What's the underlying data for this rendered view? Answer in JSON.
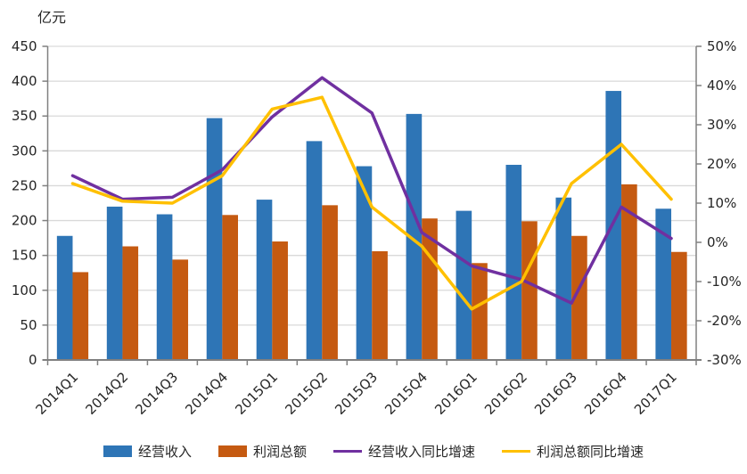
{
  "chart_data": {
    "type": "combo-bar-line",
    "title": "",
    "left_axis": {
      "title": "亿元",
      "min": 0,
      "max": 450,
      "step": 50
    },
    "right_axis": {
      "min": -30,
      "max": 50,
      "step": 10,
      "format": "percent"
    },
    "categories": [
      "2014Q1",
      "2014Q2",
      "2014Q3",
      "2014Q4",
      "2015Q1",
      "2015Q2",
      "2015Q3",
      "2015Q4",
      "2016Q1",
      "2016Q2",
      "2016Q3",
      "2016Q4",
      "2017Q1"
    ],
    "series": [
      {
        "name": "经营收入",
        "type": "bar",
        "axis": "left",
        "color": "#2E75B6",
        "values": [
          178,
          220,
          209,
          347,
          230,
          314,
          278,
          353,
          214,
          280,
          233,
          386,
          217
        ]
      },
      {
        "name": "利润总额",
        "type": "bar",
        "axis": "left",
        "color": "#C55A11",
        "values": [
          126,
          163,
          144,
          208,
          170,
          222,
          156,
          203,
          139,
          199,
          178,
          252,
          155
        ]
      },
      {
        "name": "经营收入同比增速",
        "type": "line",
        "axis": "right",
        "color": "#7030A0",
        "values": [
          17,
          11,
          11.5,
          18.5,
          32,
          42,
          33,
          2.5,
          -6,
          -9.5,
          -15.5,
          9,
          1
        ]
      },
      {
        "name": "利润总额同比增速",
        "type": "line",
        "axis": "right",
        "color": "#FFC000",
        "values": [
          15,
          10.5,
          10,
          17,
          34,
          37,
          9,
          -1,
          -17,
          -10,
          15,
          25,
          11
        ]
      }
    ],
    "grid": true,
    "legend_position": "bottom",
    "colors": {
      "gridline": "#D9D9D9",
      "axis_line": "#808080",
      "text": "#262626",
      "background": "#FFFFFF"
    }
  }
}
